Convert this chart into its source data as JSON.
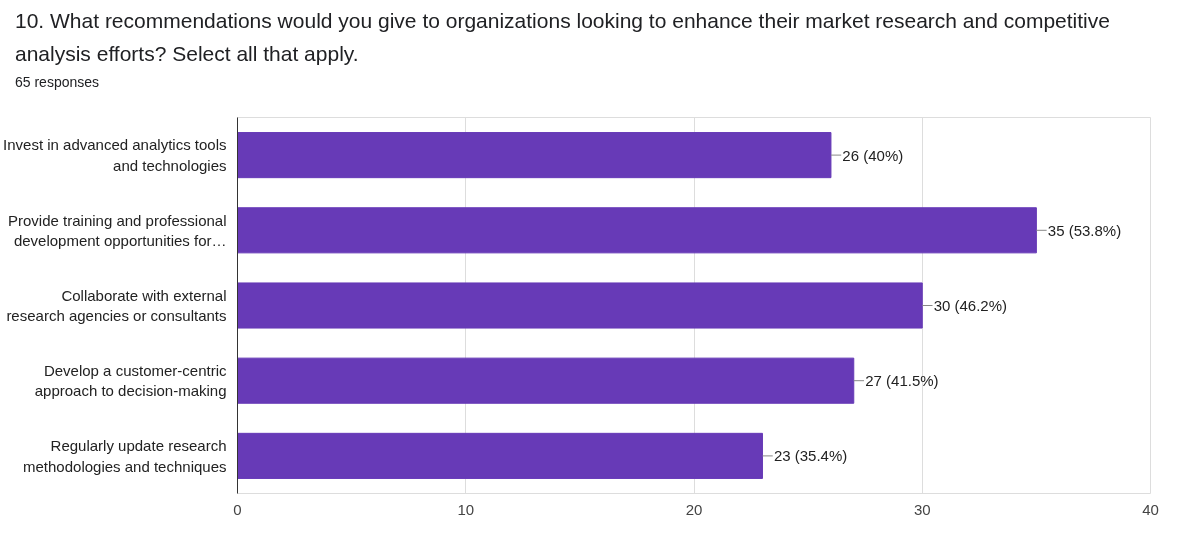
{
  "chart_data": {
    "type": "bar",
    "orientation": "horizontal",
    "title": "10. What recommendations would you give to organizations looking to enhance their market research and competitive analysis efforts? Select all that apply.",
    "subtitle": "65 responses",
    "categories": [
      "Invest in advanced analytics tools\nand technologies",
      "Provide training and professional\ndevelopment opportunities for…",
      "Collaborate with external\nresearch agencies or consultants",
      "Develop a customer-centric\napproach to decision-making",
      "Regularly update research\nmethodologies and techniques"
    ],
    "values": [
      26,
      35,
      30,
      27,
      23
    ],
    "value_labels": [
      "26 (40%)",
      "35 (53.8%)",
      "30 (46.2%)",
      "27 (41.5%)",
      "23 (35.4%)"
    ],
    "color": "#673ab7",
    "xlim": [
      0,
      40
    ],
    "xticks": [
      0,
      10,
      20,
      30,
      40
    ],
    "grid": "x"
  }
}
